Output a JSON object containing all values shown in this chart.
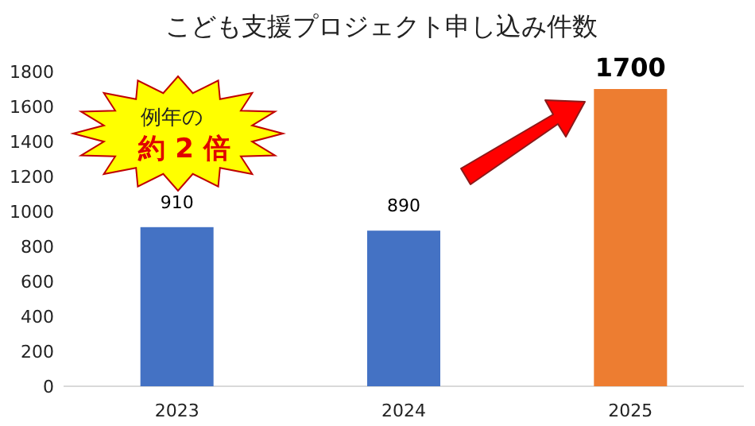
{
  "chart_data": {
    "type": "bar",
    "title": "こども支援プロジェクト申し込み件数",
    "categories": [
      "2023",
      "2024",
      "2025"
    ],
    "values": [
      910,
      890,
      1700
    ],
    "colors": [
      "#4472c4",
      "#4472c4",
      "#ed7d31"
    ],
    "ylim": [
      0,
      1800
    ],
    "yticks": [
      0,
      200,
      400,
      600,
      800,
      1000,
      1200,
      1400,
      1600,
      1800
    ],
    "data_labels": true,
    "annotations": [
      "例年の",
      "約 2 倍"
    ]
  }
}
